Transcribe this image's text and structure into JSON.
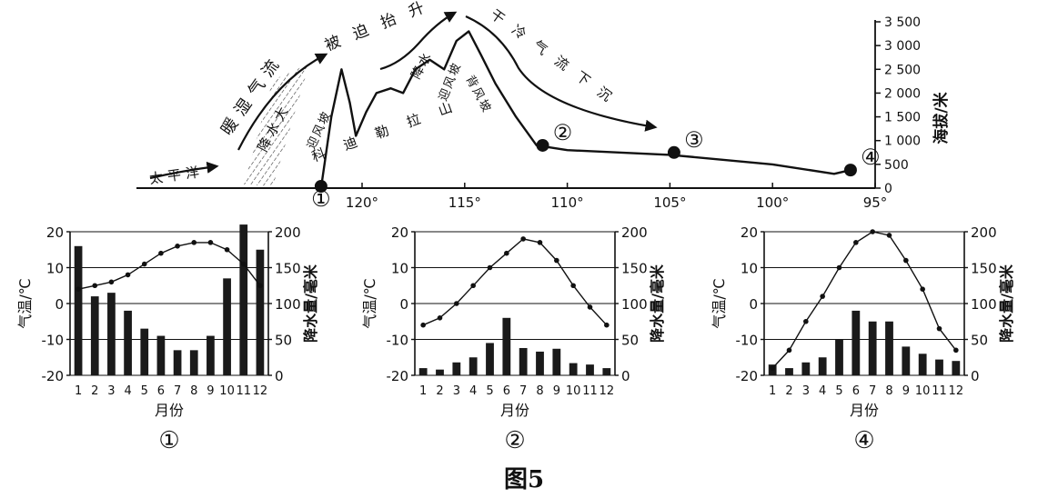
{
  "figure_caption": "图5",
  "profile": {
    "elev_axis": {
      "title": "海拔/米",
      "ticks": [
        "0",
        "500",
        "1 000",
        "1 500",
        "2 000",
        "2 500",
        "3 000",
        "3 500"
      ],
      "values": [
        0,
        500,
        1000,
        1500,
        2000,
        2500,
        3000,
        3500
      ]
    },
    "lon_axis": {
      "ticks": [
        "120°",
        "115°",
        "110°",
        "105°",
        "100°",
        "95°"
      ],
      "values": [
        120,
        115,
        110,
        105,
        100,
        95
      ]
    },
    "terrain": [
      [
        122.0,
        0
      ],
      [
        121.5,
        1500
      ],
      [
        121.0,
        2500
      ],
      [
        120.6,
        1800
      ],
      [
        120.3,
        1100
      ],
      [
        119.8,
        1600
      ],
      [
        119.3,
        2000
      ],
      [
        118.6,
        2100
      ],
      [
        118.0,
        2000
      ],
      [
        117.4,
        2500
      ],
      [
        116.7,
        2700
      ],
      [
        116.0,
        2500
      ],
      [
        115.4,
        3100
      ],
      [
        114.8,
        3300
      ],
      [
        114.2,
        2800
      ],
      [
        113.5,
        2200
      ],
      [
        112.5,
        1500
      ],
      [
        111.5,
        900
      ],
      [
        110.0,
        800
      ],
      [
        105.0,
        700
      ],
      [
        100.0,
        500
      ],
      [
        97.0,
        300
      ],
      [
        96.0,
        400
      ]
    ],
    "stations": [
      {
        "label": "①",
        "lon": 122.0,
        "elev": 0
      },
      {
        "label": "②",
        "lon": 111.2,
        "elev": 900
      },
      {
        "label": "③",
        "lon": 104.8,
        "elev": 750
      },
      {
        "label": "④",
        "lon": 96.2,
        "elev": 380
      }
    ],
    "labels": {
      "pacific": "太平洋",
      "humid_flow": "暖湿气流",
      "forced": "被迫抬升",
      "rain_big": "降水大",
      "rain": "降水",
      "dry_cold": "干冷气流下沉",
      "cordillera": "科迪勒拉山",
      "windward": "迎风坡",
      "windward2": "迎风坡",
      "leeward": "背风坡"
    }
  },
  "chart_data": [
    {
      "type": "bar",
      "title": "①",
      "categories": [
        "1",
        "2",
        "3",
        "4",
        "5",
        "6",
        "7",
        "8",
        "9",
        "10",
        "11",
        "12"
      ],
      "xlabel": "月份",
      "ylabel_left": "气温/℃",
      "ylabel_right": "降水量/毫米",
      "ylim_left": [
        -20,
        20
      ],
      "ylim_right": [
        0,
        200
      ],
      "left_ticks": [
        20,
        10,
        0,
        -10,
        -20
      ],
      "right_ticks": [
        200,
        150,
        100,
        50,
        0
      ],
      "series": [
        {
          "kind": "bar",
          "axis": "right",
          "values": [
            180,
            110,
            115,
            90,
            65,
            55,
            35,
            35,
            55,
            135,
            210,
            175
          ]
        },
        {
          "kind": "line",
          "axis": "left",
          "values": [
            4,
            5,
            6,
            8,
            11,
            14,
            16,
            17,
            17,
            15,
            11,
            5
          ]
        }
      ]
    },
    {
      "type": "bar",
      "title": "②",
      "categories": [
        "1",
        "2",
        "3",
        "4",
        "5",
        "6",
        "7",
        "8",
        "9",
        "10",
        "11",
        "12"
      ],
      "xlabel": "月份",
      "ylabel_left": "气温/℃",
      "ylabel_right": "降水量/毫米",
      "ylim_left": [
        -20,
        20
      ],
      "ylim_right": [
        0,
        200
      ],
      "left_ticks": [
        20,
        10,
        0,
        -10,
        -20
      ],
      "right_ticks": [
        200,
        150,
        100,
        50,
        0
      ],
      "series": [
        {
          "kind": "bar",
          "axis": "right",
          "values": [
            10,
            8,
            18,
            25,
            45,
            80,
            38,
            33,
            37,
            17,
            15,
            10
          ]
        },
        {
          "kind": "line",
          "axis": "left",
          "values": [
            -6,
            -4,
            0,
            5,
            10,
            14,
            18,
            17,
            12,
            5,
            -1,
            -6
          ]
        }
      ]
    },
    {
      "type": "bar",
      "title": "④",
      "categories": [
        "1",
        "2",
        "3",
        "4",
        "5",
        "6",
        "7",
        "8",
        "9",
        "10",
        "11",
        "12"
      ],
      "xlabel": "月份",
      "ylabel_left": "气温/℃",
      "ylabel_right": "降水量/毫米",
      "ylim_left": [
        -20,
        20
      ],
      "ylim_right": [
        0,
        200
      ],
      "left_ticks": [
        20,
        10,
        0,
        -10,
        -20
      ],
      "right_ticks": [
        200,
        150,
        100,
        50,
        0
      ],
      "series": [
        {
          "kind": "bar",
          "axis": "right",
          "values": [
            15,
            10,
            18,
            25,
            50,
            90,
            75,
            75,
            40,
            30,
            22,
            20
          ]
        },
        {
          "kind": "line",
          "axis": "left",
          "values": [
            -18,
            -13,
            -5,
            2,
            10,
            17,
            20,
            19,
            12,
            4,
            -7,
            -13
          ]
        }
      ]
    }
  ]
}
